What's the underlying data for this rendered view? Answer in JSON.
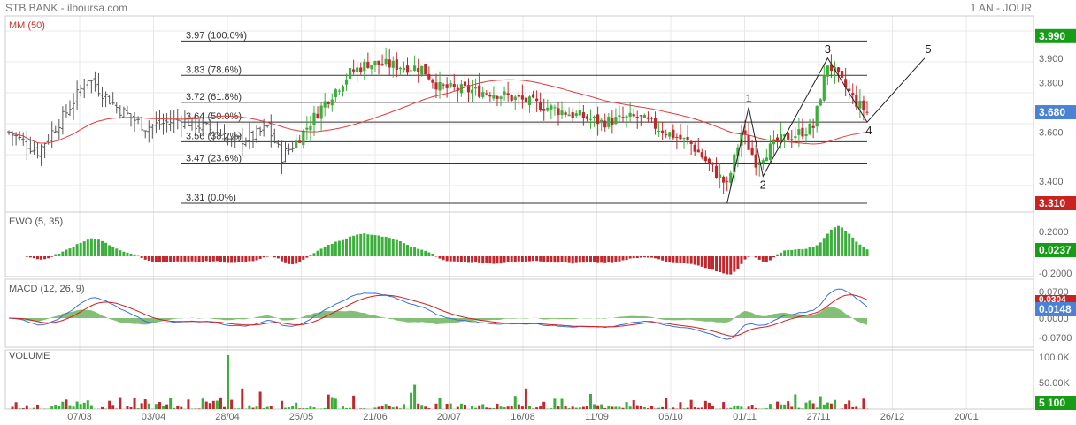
{
  "header": {
    "title": "STB BANK - ilboursa.com",
    "period": "1 AN - JOUR"
  },
  "colors": {
    "up": "#3cae3c",
    "down": "#c0282d",
    "ma": "#e03c3c",
    "macd": "#3a6fd8",
    "signal": "#d22020",
    "hist": "#5aaa48",
    "last_green": "#179c17",
    "last_blue": "#4a82d6",
    "last_red": "#c8231e",
    "grid": "#e8e8e8"
  },
  "x_labels": [
    "07/03",
    "03/04",
    "28/04",
    "25/05",
    "21/06",
    "20/07",
    "16/08",
    "11/09",
    "06/10",
    "01/11",
    "27/11",
    "26/12",
    "20/01"
  ],
  "chart_data": [
    {
      "type": "candlestick",
      "title": "MM (50)",
      "ylim": [
        3.31,
        4.0
      ],
      "y_ticks": [
        "3.900",
        "3.800",
        "3.600",
        "3.400"
      ],
      "last_labels": {
        "top": "3.990",
        "current": "3.680",
        "bottom": "3.310"
      },
      "fib_levels": [
        {
          "price": 3.97,
          "label": "3.97  (100.0%)"
        },
        {
          "price": 3.83,
          "label": "3.83  (78.6%)"
        },
        {
          "price": 3.72,
          "label": "3.72  (61.8%)"
        },
        {
          "price": 3.64,
          "label": "3.64  (50.0%)"
        },
        {
          "price": 3.56,
          "label": "3.56  (38.2%)"
        },
        {
          "price": 3.47,
          "label": "3.47  (23.6%)"
        },
        {
          "price": 3.31,
          "label": "3.31  (0.0%)"
        }
      ],
      "wave_labels": [
        "1",
        "2",
        "3",
        "4",
        "5"
      ]
    },
    {
      "type": "bar",
      "title": "EWO (5, 35)",
      "ylim": [
        -0.2,
        0.2
      ],
      "y_ticks": [
        "0.2000",
        "-0.2000"
      ],
      "last_value": "0.0237"
    },
    {
      "type": "line",
      "title": "MACD (12, 26, 9)",
      "ylim": [
        -0.07,
        0.07
      ],
      "y_ticks": [
        "0.0700",
        "0.0000",
        "-0.0700"
      ],
      "signal_last": "0.0304",
      "last_value": "0.0148"
    },
    {
      "type": "bar",
      "title": "VOLUME",
      "ylim": [
        0,
        100000
      ],
      "y_ticks": [
        "100.0K",
        "50.00K"
      ],
      "last_value": "5 100"
    }
  ]
}
